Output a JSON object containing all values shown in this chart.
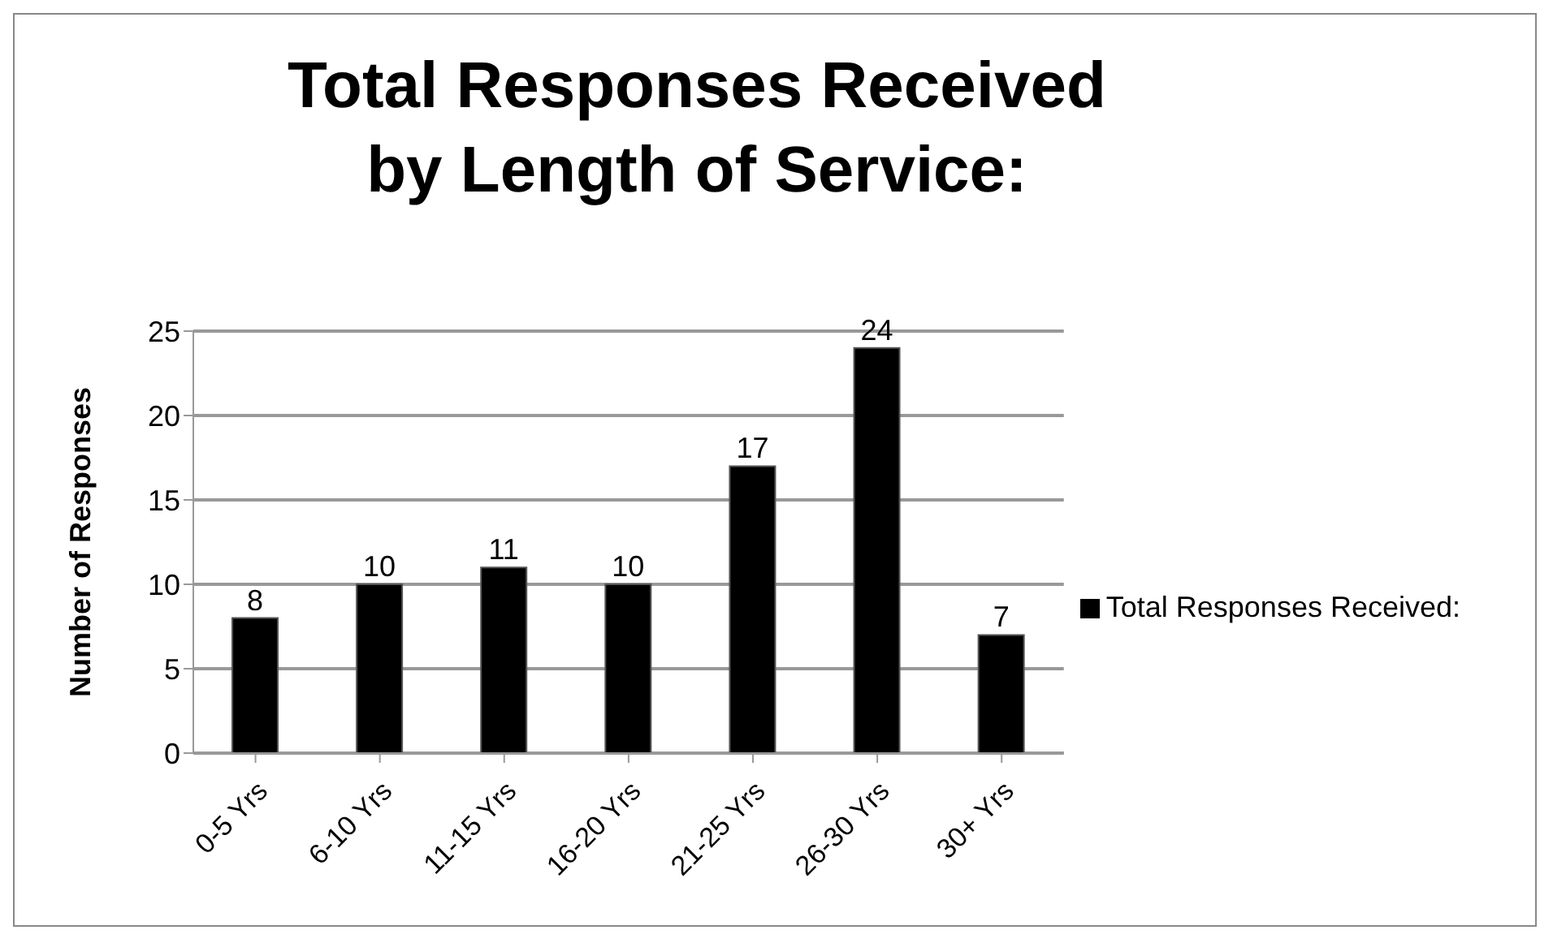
{
  "chart_data": {
    "type": "bar",
    "title": "Total Responses Received by Length of Service:",
    "ylabel": "Number of Responses",
    "categories": [
      "0-5 Yrs",
      "6-10 Yrs",
      "11-15 Yrs",
      "16-20 Yrs",
      "21-25 Yrs",
      "26-30 Yrs",
      "30+ Yrs"
    ],
    "series": [
      {
        "name": "Total Responses Received:",
        "color": "#000000",
        "values": [
          8,
          10,
          11,
          10,
          17,
          24,
          7
        ]
      }
    ],
    "ylim": [
      0,
      25
    ],
    "yticks": [
      0,
      5,
      10,
      15,
      20,
      25
    ],
    "grid": "y",
    "legend": "right",
    "data_labels": true
  }
}
